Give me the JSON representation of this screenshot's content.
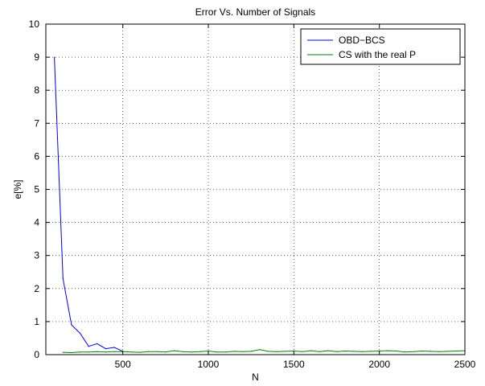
{
  "chart_data": {
    "type": "line",
    "title": "Error Vs.  Number of Signals",
    "xlabel": "N",
    "ylabel": "e[%]",
    "xlim": [
      50,
      2500
    ],
    "ylim": [
      0,
      10
    ],
    "xticks": [
      500,
      1000,
      1500,
      2000,
      2500
    ],
    "yticks": [
      0,
      1,
      2,
      3,
      4,
      5,
      6,
      7,
      8,
      9,
      10
    ],
    "grid": true,
    "legend_position": "top-right",
    "series": [
      {
        "name": "OBD−BCS",
        "color": "#0000ff",
        "x": [
          100,
          150,
          200,
          250,
          300,
          350,
          400,
          450,
          500
        ],
        "y": [
          9.0,
          2.3,
          0.9,
          0.65,
          0.25,
          0.33,
          0.18,
          0.22,
          0.1
        ]
      },
      {
        "name": "CS with the real P",
        "color": "#008000",
        "x": [
          150,
          200,
          250,
          300,
          350,
          400,
          450,
          500,
          550,
          600,
          650,
          700,
          750,
          800,
          850,
          900,
          950,
          1000,
          1050,
          1100,
          1150,
          1200,
          1250,
          1300,
          1350,
          1400,
          1450,
          1500,
          1550,
          1600,
          1650,
          1700,
          1750,
          1800,
          1850,
          1900,
          1950,
          2000,
          2050,
          2100,
          2150,
          2200,
          2250,
          2300,
          2350,
          2400,
          2450,
          2500
        ],
        "y": [
          0.07,
          0.06,
          0.08,
          0.08,
          0.09,
          0.08,
          0.09,
          0.09,
          0.08,
          0.07,
          0.09,
          0.09,
          0.08,
          0.12,
          0.09,
          0.08,
          0.09,
          0.11,
          0.08,
          0.08,
          0.1,
          0.09,
          0.1,
          0.15,
          0.1,
          0.09,
          0.1,
          0.11,
          0.09,
          0.12,
          0.09,
          0.12,
          0.09,
          0.11,
          0.1,
          0.09,
          0.1,
          0.11,
          0.12,
          0.11,
          0.08,
          0.09,
          0.11,
          0.1,
          0.09,
          0.1,
          0.11,
          0.12
        ]
      }
    ]
  }
}
